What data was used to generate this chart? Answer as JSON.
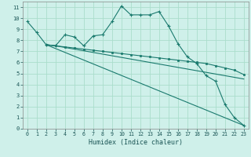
{
  "xlabel": "Humidex (Indice chaleur)",
  "bg_color": "#cff0ea",
  "grid_color": "#aaddcc",
  "line_color": "#1a7a6e",
  "xlim": [
    -0.5,
    23.5
  ],
  "ylim": [
    0,
    11.5
  ],
  "xticks": [
    0,
    1,
    2,
    3,
    4,
    5,
    6,
    7,
    8,
    9,
    10,
    11,
    12,
    13,
    14,
    15,
    16,
    17,
    18,
    19,
    20,
    21,
    22,
    23
  ],
  "yticks": [
    0,
    1,
    2,
    3,
    4,
    5,
    6,
    7,
    8,
    9,
    10,
    11
  ],
  "line1_x": [
    0,
    1,
    2,
    3,
    4,
    5,
    6,
    7,
    8,
    9,
    10,
    11,
    12,
    13,
    14,
    15,
    16,
    17,
    18,
    19,
    20,
    21,
    22,
    23
  ],
  "line1_y": [
    9.7,
    8.7,
    7.6,
    7.5,
    8.5,
    8.3,
    7.5,
    8.4,
    8.5,
    9.7,
    11.1,
    10.3,
    10.3,
    10.3,
    10.6,
    9.3,
    7.7,
    6.5,
    5.9,
    4.8,
    4.3,
    2.2,
    1.0,
    0.3
  ],
  "line2_x": [
    2,
    23
  ],
  "line2_y": [
    7.6,
    0.3
  ],
  "line3_x": [
    2,
    3,
    4,
    5,
    6,
    7,
    8,
    9,
    10,
    11,
    12,
    13,
    14,
    15,
    16,
    17,
    18,
    19,
    20,
    21,
    22,
    23
  ],
  "line3_y": [
    7.6,
    7.5,
    7.4,
    7.3,
    7.2,
    7.1,
    7.0,
    6.9,
    6.8,
    6.7,
    6.6,
    6.5,
    6.4,
    6.3,
    6.2,
    6.1,
    6.0,
    5.9,
    5.7,
    5.5,
    5.3,
    4.9
  ],
  "line4_x": [
    2,
    3,
    4,
    5,
    6,
    7,
    8,
    9,
    10,
    11,
    12,
    13,
    14,
    15,
    16,
    17,
    18,
    19,
    20,
    21,
    22,
    23
  ],
  "line4_y": [
    7.6,
    7.5,
    7.35,
    7.2,
    7.05,
    6.9,
    6.75,
    6.6,
    6.45,
    6.3,
    6.15,
    6.0,
    5.85,
    5.7,
    5.55,
    5.4,
    5.25,
    5.1,
    4.95,
    4.8,
    4.65,
    4.5
  ]
}
